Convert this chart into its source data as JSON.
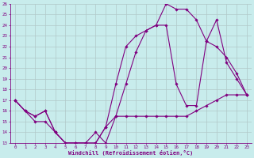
{
  "xlabel": "Windchill (Refroidissement éolien,°C)",
  "background_color": "#c8ecec",
  "line_color": "#800080",
  "grid_color": "#b0c8c8",
  "ylim": [
    13,
    26
  ],
  "xlim": [
    -0.5,
    23.5
  ],
  "yticks": [
    13,
    14,
    15,
    16,
    17,
    18,
    19,
    20,
    21,
    22,
    23,
    24,
    25,
    26
  ],
  "xticks": [
    0,
    1,
    2,
    3,
    4,
    5,
    6,
    7,
    8,
    9,
    10,
    11,
    12,
    13,
    14,
    15,
    16,
    17,
    18,
    19,
    20,
    21,
    22,
    23
  ],
  "line1_x": [
    0,
    1,
    2,
    3,
    4,
    5,
    6,
    7,
    8,
    9,
    10,
    11,
    12,
    13,
    14,
    15,
    16,
    17,
    18,
    19,
    20,
    21,
    22,
    23
  ],
  "line1_y": [
    17.0,
    16.0,
    15.0,
    15.0,
    14.0,
    13.0,
    13.0,
    13.0,
    14.0,
    13.0,
    15.5,
    15.5,
    15.5,
    15.5,
    15.5,
    15.5,
    15.5,
    15.5,
    16.0,
    16.5,
    17.0,
    17.5,
    17.5,
    17.5
  ],
  "line2_x": [
    0,
    1,
    2,
    3,
    4,
    5,
    6,
    7,
    8,
    9,
    10,
    11,
    12,
    13,
    14,
    15,
    16,
    17,
    18,
    19,
    20,
    21,
    22,
    23
  ],
  "line2_y": [
    17.0,
    16.0,
    15.5,
    16.0,
    14.0,
    13.0,
    13.0,
    13.0,
    13.0,
    14.5,
    15.5,
    18.5,
    21.5,
    23.5,
    24.0,
    24.0,
    18.5,
    16.5,
    16.5,
    22.5,
    22.0,
    21.0,
    19.5,
    17.5
  ],
  "line3_x": [
    0,
    1,
    2,
    3,
    4,
    5,
    6,
    7,
    8,
    9,
    10,
    11,
    12,
    13,
    14,
    15,
    16,
    17,
    18,
    19,
    20,
    21,
    22,
    23
  ],
  "line3_y": [
    17.0,
    16.0,
    15.5,
    16.0,
    14.0,
    13.0,
    13.0,
    13.0,
    13.0,
    14.5,
    18.5,
    22.0,
    23.0,
    23.5,
    24.0,
    26.0,
    25.5,
    25.5,
    24.5,
    22.5,
    24.5,
    20.5,
    19.0,
    17.5
  ]
}
